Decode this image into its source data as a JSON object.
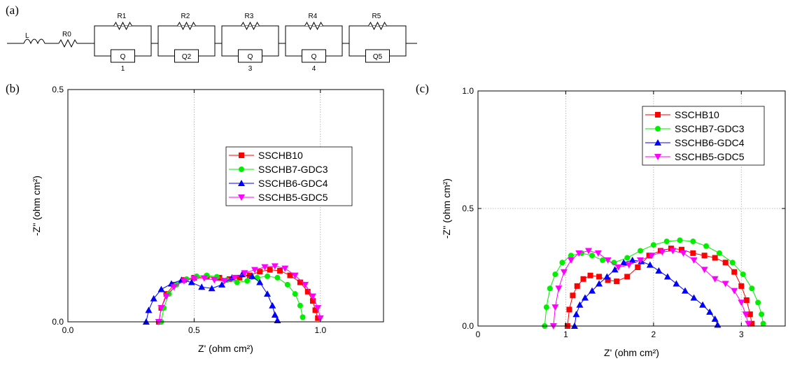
{
  "panels": {
    "a": "(a)",
    "b": "(b)",
    "c": "(c)"
  },
  "circuit": {
    "elements": {
      "L": "L",
      "R0": "R0",
      "R1": "R1",
      "R2": "R2",
      "R3": "R3",
      "R4": "R4",
      "R5": "R5",
      "Q1": "Q",
      "Q1sub": "1",
      "Q2": "Q2",
      "Q3": "Q",
      "Q3sub": "3",
      "Q4": "Q",
      "Q4sub": "4",
      "Q5": "Q5"
    }
  },
  "colors": {
    "SSCHB10": "#ff0000",
    "SSCHB7-GDC3": "#00ee00",
    "SSCHB6-GDC4": "#0000ff",
    "SSCHB5-GDC5": "#ff00ff"
  },
  "chart_data": [
    {
      "type": "scatter",
      "panel": "(b)",
      "xlabel": "Z' (ohm cm²)",
      "ylabel": "-Z'' (ohm cm²)",
      "xlim": [
        0.0,
        1.25
      ],
      "ylim": [
        0.0,
        0.5
      ],
      "xticks": [
        "0.0",
        "0.5",
        "1.0"
      ],
      "yticks": [
        "0.0",
        "0.5"
      ],
      "xtick_values": [
        0.0,
        0.5,
        1.0
      ],
      "ytick_values": [
        0.0,
        0.5
      ],
      "grid": true,
      "legend": "center-right",
      "series": [
        {
          "name": "SSCHB10",
          "marker": "square",
          "x": [
            0.36,
            0.37,
            0.39,
            0.42,
            0.46,
            0.5,
            0.55,
            0.6,
            0.64,
            0.68,
            0.72,
            0.76,
            0.8,
            0.84,
            0.88,
            0.92,
            0.95,
            0.97,
            0.98,
            0.99
          ],
          "y": [
            0.0,
            0.03,
            0.06,
            0.08,
            0.09,
            0.095,
            0.097,
            0.095,
            0.092,
            0.095,
            0.1,
            0.108,
            0.112,
            0.11,
            0.1,
            0.085,
            0.065,
            0.045,
            0.025,
            0.008
          ]
        },
        {
          "name": "SSCHB7-GDC3",
          "marker": "circle",
          "x": [
            0.37,
            0.38,
            0.4,
            0.43,
            0.47,
            0.51,
            0.55,
            0.59,
            0.63,
            0.67,
            0.71,
            0.75,
            0.79,
            0.83,
            0.87,
            0.9,
            0.92,
            0.93
          ],
          "y": [
            0.0,
            0.03,
            0.06,
            0.08,
            0.092,
            0.098,
            0.1,
            0.097,
            0.09,
            0.085,
            0.088,
            0.095,
            0.098,
            0.095,
            0.08,
            0.06,
            0.035,
            0.01
          ]
        },
        {
          "name": "SSCHB6-GDC4",
          "marker": "triangle-up",
          "x": [
            0.31,
            0.32,
            0.34,
            0.37,
            0.41,
            0.45,
            0.49,
            0.53,
            0.57,
            0.61,
            0.65,
            0.69,
            0.73,
            0.76,
            0.79,
            0.81,
            0.82,
            0.83
          ],
          "y": [
            0.0,
            0.025,
            0.05,
            0.07,
            0.082,
            0.09,
            0.085,
            0.075,
            0.072,
            0.08,
            0.095,
            0.102,
            0.098,
            0.085,
            0.06,
            0.035,
            0.015,
            0.003
          ]
        },
        {
          "name": "SSCHB5-GDC5",
          "marker": "triangle-down",
          "x": [
            0.36,
            0.37,
            0.39,
            0.42,
            0.46,
            0.5,
            0.54,
            0.58,
            0.62,
            0.66,
            0.7,
            0.74,
            0.78,
            0.82,
            0.86,
            0.9,
            0.94,
            0.97,
            0.99,
            1.0
          ],
          "y": [
            0.0,
            0.03,
            0.055,
            0.075,
            0.088,
            0.093,
            0.094,
            0.09,
            0.088,
            0.095,
            0.105,
            0.112,
            0.118,
            0.12,
            0.115,
            0.1,
            0.08,
            0.055,
            0.03,
            0.008
          ]
        }
      ]
    },
    {
      "type": "scatter",
      "panel": "(c)",
      "xlabel": "Z' (ohm cm²)",
      "ylabel": "-Z'' (ohm cm²)",
      "xlim": [
        0,
        3.5
      ],
      "ylim": [
        0.0,
        1.0
      ],
      "xticks": [
        "0",
        "1",
        "2",
        "3"
      ],
      "yticks": [
        "0.0",
        "0.5",
        "1.0"
      ],
      "xtick_values": [
        0,
        1,
        2,
        3
      ],
      "ytick_values": [
        0.0,
        0.5,
        1.0
      ],
      "grid": true,
      "legend": "top-right",
      "series": [
        {
          "name": "SSCHB10",
          "marker": "square",
          "x": [
            1.02,
            1.04,
            1.08,
            1.13,
            1.2,
            1.28,
            1.38,
            1.48,
            1.58,
            1.7,
            1.82,
            1.95,
            2.08,
            2.2,
            2.32,
            2.45,
            2.58,
            2.7,
            2.82,
            2.92,
            3.0,
            3.06,
            3.1,
            3.12
          ],
          "y": [
            0.0,
            0.07,
            0.13,
            0.17,
            0.2,
            0.215,
            0.21,
            0.195,
            0.19,
            0.21,
            0.25,
            0.3,
            0.32,
            0.33,
            0.325,
            0.31,
            0.3,
            0.29,
            0.27,
            0.23,
            0.17,
            0.11,
            0.05,
            0.01
          ]
        },
        {
          "name": "SSCHB7-GDC3",
          "marker": "circle",
          "x": [
            0.76,
            0.78,
            0.82,
            0.88,
            0.96,
            1.06,
            1.18,
            1.3,
            1.42,
            1.55,
            1.7,
            1.85,
            2.0,
            2.15,
            2.3,
            2.45,
            2.6,
            2.75,
            2.9,
            3.02,
            3.12,
            3.19,
            3.23,
            3.25
          ],
          "y": [
            0.0,
            0.08,
            0.16,
            0.22,
            0.27,
            0.3,
            0.31,
            0.3,
            0.28,
            0.27,
            0.29,
            0.32,
            0.345,
            0.36,
            0.365,
            0.36,
            0.34,
            0.31,
            0.27,
            0.22,
            0.16,
            0.1,
            0.05,
            0.01
          ]
        },
        {
          "name": "SSCHB6-GDC4",
          "marker": "triangle-up",
          "x": [
            1.1,
            1.12,
            1.16,
            1.22,
            1.3,
            1.38,
            1.47,
            1.56,
            1.66,
            1.76,
            1.86,
            1.96,
            2.06,
            2.16,
            2.26,
            2.36,
            2.46,
            2.56,
            2.64,
            2.7,
            2.73
          ],
          "y": [
            0.0,
            0.05,
            0.09,
            0.12,
            0.15,
            0.18,
            0.21,
            0.24,
            0.27,
            0.28,
            0.275,
            0.26,
            0.235,
            0.21,
            0.18,
            0.15,
            0.12,
            0.09,
            0.06,
            0.03,
            0.005
          ]
        },
        {
          "name": "SSCHB5-GDC5",
          "marker": "triangle-down",
          "x": [
            0.86,
            0.88,
            0.92,
            0.98,
            1.06,
            1.15,
            1.26,
            1.37,
            1.48,
            1.6,
            1.72,
            1.85,
            1.98,
            2.1,
            2.22,
            2.34,
            2.46,
            2.58,
            2.7,
            2.82,
            2.92,
            3.0,
            3.05,
            3.08
          ],
          "y": [
            0.0,
            0.08,
            0.16,
            0.23,
            0.28,
            0.31,
            0.32,
            0.31,
            0.28,
            0.25,
            0.26,
            0.28,
            0.3,
            0.315,
            0.32,
            0.31,
            0.28,
            0.24,
            0.2,
            0.18,
            0.15,
            0.1,
            0.05,
            0.01
          ]
        }
      ]
    }
  ]
}
